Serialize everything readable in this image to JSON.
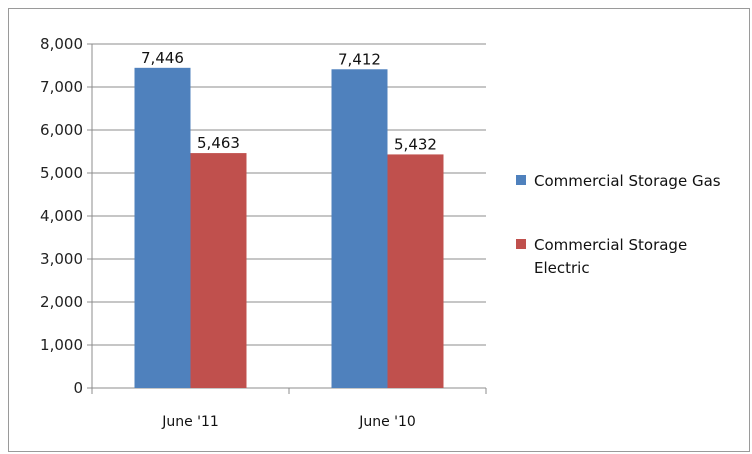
{
  "chart_data": {
    "type": "bar",
    "categories": [
      "June '11",
      "June '10"
    ],
    "series": [
      {
        "name": "Commercial Storage Gas",
        "values": [
          7446,
          7412
        ],
        "labels": [
          "7,446",
          "7,412"
        ],
        "color": "#4f81bd"
      },
      {
        "name": "Commercial Storage Electric",
        "values": [
          5463,
          5432
        ],
        "labels": [
          "5,463",
          "5,432"
        ],
        "color": "#c0504d"
      }
    ],
    "ylim": [
      0,
      8000
    ],
    "yticks": [
      0,
      1000,
      2000,
      3000,
      4000,
      5000,
      6000,
      7000,
      8000
    ],
    "ytick_labels": [
      "0",
      "1,000",
      "2,000",
      "3,000",
      "4,000",
      "5,000",
      "6,000",
      "7,000",
      "8,000"
    ],
    "grid": true,
    "legend_position": "right",
    "legend": [
      {
        "lines": [
          "Commercial Storage Gas"
        ]
      },
      {
        "lines": [
          "Commercial Storage",
          "Electric"
        ]
      }
    ],
    "title": "",
    "xlabel": "",
    "ylabel": ""
  }
}
